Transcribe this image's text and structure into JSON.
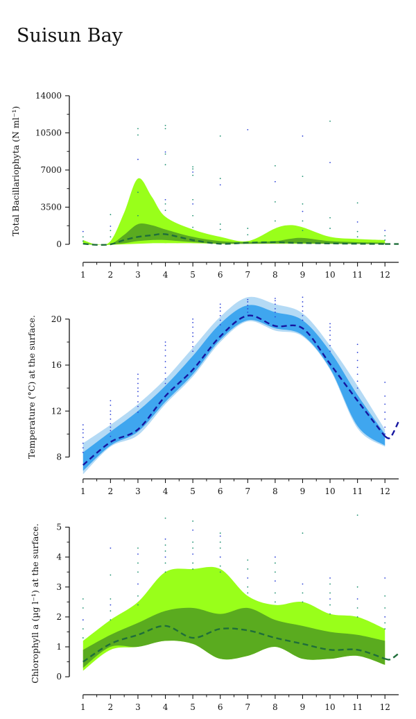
{
  "page_title": "Suisun Bay",
  "colors": {
    "dots_green": "#1a8f6e",
    "dots_blue": "#2a3fd6",
    "bio_outer": "#99ff1a",
    "bio_inner": "#5aab1f",
    "bio_median": "#1f6e3a",
    "temp_outer": "#b4daf5",
    "temp_inner": "#3fa6ef",
    "temp_median": "#1616a0"
  },
  "chart_data": [
    {
      "type": "area",
      "xlabel": "",
      "ylabel": "Total Bacillariophyta (N ml⁻¹)",
      "x_ticks": [
        "1",
        "2",
        "3",
        "4",
        "5",
        "6",
        "7",
        "8",
        "9",
        "10",
        "11",
        "12"
      ],
      "y_ticks": [
        "0",
        "3500",
        "7000",
        "10500",
        "14000"
      ],
      "y_tick_values": [
        0,
        3500,
        7000,
        10500,
        14000
      ],
      "xlim": [
        0.5,
        12.5
      ],
      "ylim": [
        -1700,
        15500
      ],
      "grid": false,
      "x": [
        1,
        1.5,
        2,
        2.5,
        3,
        3.5,
        4,
        5,
        6,
        7,
        8,
        8.5,
        9,
        10,
        11,
        12
      ],
      "series": [
        {
          "role": "outer_band",
          "upper": [
            400,
            0,
            300,
            3000,
            6200,
            4500,
            2600,
            1400,
            700,
            300,
            1500,
            1800,
            1600,
            700,
            500,
            400
          ],
          "lower": [
            0,
            -50,
            -50,
            0,
            50,
            100,
            100,
            100,
            50,
            50,
            50,
            50,
            50,
            50,
            30,
            30
          ]
        },
        {
          "role": "inner_band",
          "upper": [
            150,
            -30,
            0,
            900,
            1900,
            1800,
            1400,
            700,
            300,
            200,
            300,
            500,
            600,
            300,
            200,
            150
          ],
          "lower": [
            30,
            -40,
            -30,
            100,
            300,
            400,
            400,
            200,
            50,
            50,
            80,
            100,
            100,
            50,
            30,
            30
          ]
        },
        {
          "role": "median",
          "values": [
            50,
            -50,
            0,
            400,
            700,
            850,
            950,
            400,
            50,
            150,
            200,
            150,
            120,
            80,
            50,
            30
          ]
        }
      ],
      "extension": {
        "x": [
          12,
          12.5
        ],
        "values": [
          30,
          30
        ]
      },
      "scatter": [
        {
          "x": 1,
          "y": [
            300,
            700,
            1200
          ]
        },
        {
          "x": 2,
          "y": [
            700,
            1300,
            1700,
            2800
          ]
        },
        {
          "x": 3,
          "y": [
            2700,
            4900,
            8000,
            10300,
            10900
          ]
        },
        {
          "x": 4,
          "y": [
            3200,
            3800,
            4200,
            7500,
            8500,
            8700,
            10900,
            11200
          ]
        },
        {
          "x": 5,
          "y": [
            1600,
            2700,
            3800,
            4200,
            6500,
            6800,
            7100,
            7300
          ]
        },
        {
          "x": 6,
          "y": [
            1400,
            1900,
            5600,
            6200,
            10200
          ]
        },
        {
          "x": 7,
          "y": [
            900,
            1500,
            10800
          ]
        },
        {
          "x": 8,
          "y": [
            2200,
            4000,
            5900,
            7400
          ]
        },
        {
          "x": 9,
          "y": [
            1300,
            2200,
            3100,
            3800,
            6400,
            10200
          ]
        },
        {
          "x": 10,
          "y": [
            1500,
            2500,
            7700,
            11600
          ]
        },
        {
          "x": 11,
          "y": [
            700,
            1200,
            2100,
            3900
          ]
        },
        {
          "x": 12,
          "y": [
            400,
            800,
            1300
          ]
        }
      ]
    },
    {
      "type": "area",
      "xlabel": "",
      "ylabel": "Temperature (°C) at the surface.",
      "x_ticks": [
        "1",
        "2",
        "3",
        "4",
        "5",
        "6",
        "7",
        "8",
        "9",
        "10",
        "11",
        "12"
      ],
      "y_ticks": [
        "8",
        "12",
        "16",
        "20"
      ],
      "y_tick_values": [
        8,
        12,
        16,
        20
      ],
      "xlim": [
        0.5,
        12.5
      ],
      "ylim": [
        6.1,
        22.1
      ],
      "grid": false,
      "x": [
        1,
        2,
        3,
        4,
        5,
        6,
        7,
        8,
        9,
        10,
        11,
        12
      ],
      "series": [
        {
          "role": "outer_band",
          "upper": [
            9.2,
            10.8,
            12.6,
            14.8,
            17.5,
            20.2,
            21.9,
            21.3,
            20.5,
            17.7,
            14.2,
            10.4
          ],
          "lower": [
            6.5,
            8.9,
            9.9,
            12.6,
            15.0,
            18.0,
            19.8,
            19.0,
            18.5,
            15.6,
            10.5,
            8.9
          ]
        },
        {
          "role": "inner_band",
          "upper": [
            8.4,
            10.2,
            12.0,
            14.2,
            16.8,
            19.6,
            21.2,
            20.6,
            19.9,
            17.2,
            13.4,
            10.0
          ],
          "lower": [
            6.8,
            9.0,
            10.2,
            12.8,
            15.2,
            18.2,
            19.9,
            19.2,
            18.6,
            15.7,
            10.7,
            9.0
          ]
        },
        {
          "role": "median",
          "values": [
            7.3,
            9.3,
            10.4,
            13.3,
            15.6,
            18.5,
            20.3,
            19.4,
            19.2,
            16.1,
            12.9,
            9.8
          ]
        }
      ],
      "extension": {
        "x": [
          12,
          12.2,
          12.5
        ],
        "values": [
          9.8,
          9.7,
          11.1
        ]
      },
      "scatter": [
        {
          "x": 1,
          "y": [
            8.4,
            8.8,
            9.2,
            9.7,
            10.1,
            10.4,
            10.8
          ]
        },
        {
          "x": 2,
          "y": [
            9.8,
            10.3,
            10.6,
            10.9,
            11.3,
            11.7,
            12.0,
            12.5,
            12.9
          ]
        },
        {
          "x": 3,
          "y": [
            11.9,
            12.4,
            12.8,
            13.3,
            13.7,
            14.0,
            14.4,
            14.8,
            15.2
          ]
        },
        {
          "x": 4,
          "y": [
            14.4,
            14.8,
            15.3,
            15.8,
            16.3,
            16.8,
            17.3,
            17.7,
            18.0
          ]
        },
        {
          "x": 5,
          "y": [
            17.2,
            17.6,
            18.0,
            18.5,
            18.8,
            19.3,
            19.7,
            20.0
          ]
        },
        {
          "x": 6,
          "y": [
            19.5,
            19.9,
            20.3,
            20.7,
            21.0,
            21.3
          ]
        },
        {
          "x": 7,
          "y": [
            20.6,
            20.9,
            21.2,
            21.5,
            21.7
          ]
        },
        {
          "x": 8,
          "y": [
            20.2,
            20.6,
            20.9,
            21.3,
            21.6,
            21.8
          ]
        },
        {
          "x": 9,
          "y": [
            19.9,
            20.3,
            20.7,
            21.1,
            21.5,
            21.9
          ]
        },
        {
          "x": 10,
          "y": [
            17.2,
            17.7,
            18.2,
            18.6,
            19.0,
            19.3,
            19.6
          ]
        },
        {
          "x": 11,
          "y": [
            14.0,
            14.6,
            15.2,
            15.8,
            16.4,
            17.1,
            17.8
          ]
        },
        {
          "x": 12,
          "y": [
            10.0,
            10.6,
            11.3,
            11.9,
            12.6,
            13.3,
            14.5
          ]
        }
      ]
    },
    {
      "type": "area",
      "xlabel": "",
      "ylabel": "Chlorophyll a (µg l⁻¹) at the surface.",
      "x_ticks": [
        "1",
        "2",
        "3",
        "4",
        "5",
        "6",
        "7",
        "8",
        "9",
        "10",
        "11",
        "12"
      ],
      "y_ticks": [
        "0",
        "1",
        "2",
        "3",
        "4",
        "5"
      ],
      "y_tick_values": [
        0,
        1,
        2,
        3,
        4,
        5
      ],
      "xlim": [
        0.5,
        12.5
      ],
      "ylim": [
        -0.6,
        5.5
      ],
      "grid": false,
      "x": [
        1,
        2,
        3,
        4,
        5,
        6,
        7,
        8,
        9,
        10,
        11,
        12
      ],
      "series": [
        {
          "role": "outer_band",
          "upper": [
            1.2,
            1.9,
            2.5,
            3.5,
            3.6,
            3.6,
            2.7,
            2.4,
            2.5,
            2.1,
            2.0,
            1.6
          ],
          "lower": [
            0.2,
            0.9,
            1.0,
            1.2,
            1.1,
            0.6,
            0.7,
            1.0,
            0.6,
            0.6,
            0.7,
            0.4
          ]
        },
        {
          "role": "inner_band",
          "upper": [
            0.9,
            1.4,
            1.8,
            2.2,
            2.3,
            2.1,
            2.3,
            1.9,
            1.7,
            1.5,
            1.4,
            1.2
          ],
          "lower": [
            0.3,
            1.0,
            1.0,
            1.2,
            1.1,
            0.6,
            0.7,
            1.0,
            0.6,
            0.6,
            0.7,
            0.4
          ]
        },
        {
          "role": "median",
          "values": [
            0.5,
            1.1,
            1.4,
            1.7,
            1.3,
            1.6,
            1.55,
            1.3,
            1.1,
            0.9,
            0.9,
            0.6
          ]
        }
      ],
      "extension": {
        "x": [
          12,
          12.2,
          12.5
        ],
        "values": [
          0.6,
          0.58,
          0.78
        ]
      },
      "scatter": [
        {
          "x": 1,
          "y": [
            1.3,
            1.6,
            1.9,
            2.3,
            2.6
          ]
        },
        {
          "x": 2,
          "y": [
            1.9,
            2.2,
            2.4,
            2.6,
            3.4,
            4.3
          ]
        },
        {
          "x": 3,
          "y": [
            2.4,
            2.7,
            3.1,
            3.5,
            3.8,
            4.1,
            4.3
          ]
        },
        {
          "x": 4,
          "y": [
            3.5,
            3.8,
            4.0,
            4.2,
            4.4,
            4.6,
            5.3
          ]
        },
        {
          "x": 5,
          "y": [
            3.6,
            3.8,
            4.1,
            4.3,
            4.5,
            4.9,
            5.2
          ]
        },
        {
          "x": 6,
          "y": [
            3.5,
            3.7,
            4.0,
            4.3,
            4.5,
            4.7,
            4.8
          ]
        },
        {
          "x": 7,
          "y": [
            2.8,
            3.0,
            3.3,
            3.6,
            3.9
          ]
        },
        {
          "x": 8,
          "y": [
            2.5,
            2.8,
            3.2,
            3.5,
            3.8,
            4.0
          ]
        },
        {
          "x": 9,
          "y": [
            2.5,
            2.8,
            3.1,
            4.8
          ]
        },
        {
          "x": 10,
          "y": [
            2.1,
            2.4,
            2.6,
            2.8,
            3.1,
            3.3
          ]
        },
        {
          "x": 11,
          "y": [
            2.0,
            2.3,
            2.6,
            3.0,
            5.4
          ]
        },
        {
          "x": 12,
          "y": [
            1.6,
            1.8,
            2.0,
            2.3,
            2.7,
            3.3
          ]
        }
      ]
    }
  ]
}
